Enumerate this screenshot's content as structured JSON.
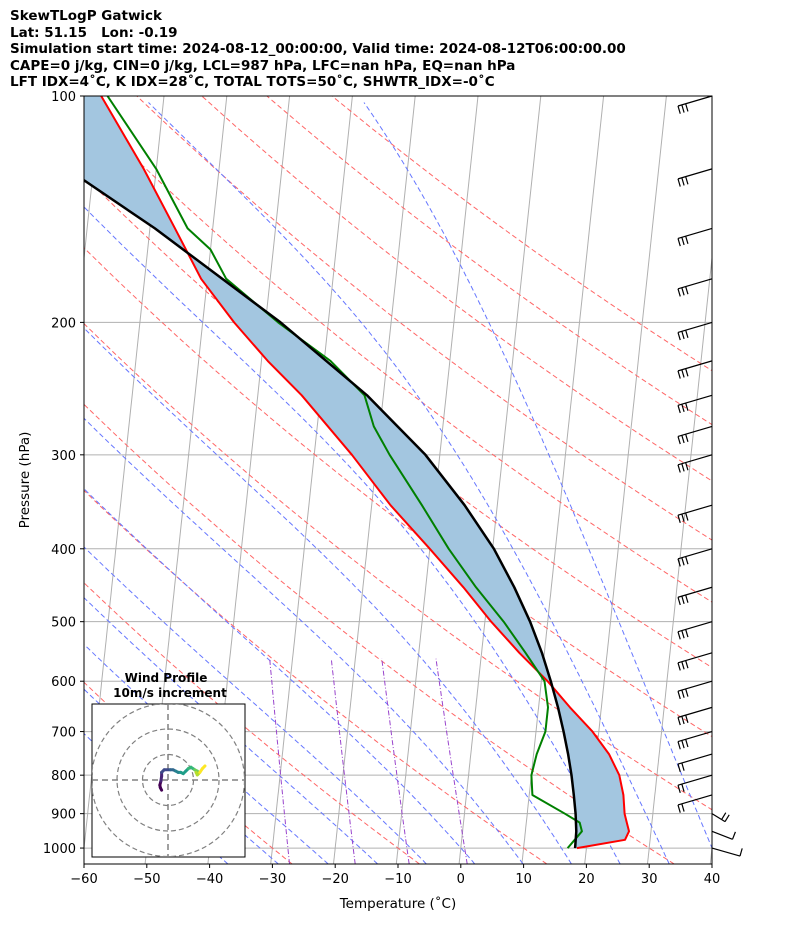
{
  "header": {
    "line1": "SkewTLogP Gatwick",
    "line2": "Lat: 51.15   Lon: -0.19",
    "line3": "Simulation start time: 2024-08-12_00:00:00, Valid time: 2024-08-12T06:00:00.00",
    "line4": "CAPE=0 j/kg, CIN=0 j/kg, LCL=987 hPa, LFC=nan hPa, EQ=nan hPa",
    "line5": "LFT IDX=4˚C, K IDX=28˚C, TOTAL TOTS=50˚C, SHWTR_IDX=-0˚C"
  },
  "colors": {
    "temperature": "#ff0000",
    "dewpoint": "#008000",
    "parcel": "#000000",
    "fill": "#a3c6e0",
    "dry_adiabat": "#ff6666",
    "moist_adiabat": "#6677ff",
    "mixing_ratio": "#9944cc",
    "isotherm": "#b0b0b0"
  },
  "chart_data": [
    {
      "type": "line",
      "subtype": "skew-t log-p",
      "xlabel": "Temperature (˚C)",
      "ylabel": "Pressure (hPa)",
      "xlim": [
        -60,
        40
      ],
      "ylim": [
        1050,
        100
      ],
      "y_scale": "log",
      "x_ticks": [
        -60,
        -50,
        -40,
        -30,
        -20,
        -10,
        0,
        10,
        20,
        30,
        40
      ],
      "y_ticks": [
        1000,
        900,
        800,
        700,
        600,
        500,
        400,
        300,
        200,
        100
      ],
      "grid": true,
      "series": [
        {
          "key": "temperature",
          "pressure": [
            1000,
            975,
            950,
            925,
            900,
            850,
            800,
            750,
            700,
            650,
            600,
            550,
            500,
            450,
            400,
            350,
            300,
            250,
            225,
            200,
            175,
            150,
            125,
            100
          ],
          "values": [
            18.5,
            26,
            26.5,
            26,
            25.5,
            25,
            24,
            22,
            19,
            15,
            11,
            6,
            1,
            -4,
            -10,
            -17,
            -24,
            -33,
            -39,
            -45,
            -51,
            -56,
            -62,
            -70
          ]
        },
        {
          "key": "dewpoint",
          "pressure": [
            1000,
            975,
            950,
            925,
            900,
            850,
            800,
            750,
            700,
            650,
            600,
            550,
            500,
            450,
            400,
            350,
            300,
            275,
            250,
            225,
            200,
            175,
            160,
            150,
            125,
            100
          ],
          "values": [
            17,
            18,
            19,
            18.5,
            16,
            10.5,
            10,
            10.5,
            11.5,
            11.5,
            10.5,
            7,
            3,
            -2,
            -7,
            -12,
            -18,
            -21,
            -23,
            -29,
            -38,
            -47,
            -50,
            -54,
            -60,
            -69
          ]
        },
        {
          "key": "parcel",
          "pressure": [
            1000,
            950,
            900,
            850,
            800,
            750,
            700,
            650,
            600,
            550,
            500,
            450,
            400,
            350,
            300,
            250,
            200,
            150,
            100
          ],
          "values": [
            18.2,
            18.1,
            17.7,
            17.1,
            16.4,
            15.5,
            14.4,
            13.1,
            11.5,
            9.6,
            7.2,
            4.1,
            0.2,
            -5.2,
            -12.3,
            -22.6,
            -37.6,
            -59.2,
            -92.5
          ]
        }
      ],
      "wind_barbs": {
        "pressure": [
          1000,
          950,
          900,
          850,
          800,
          750,
          700,
          650,
          600,
          550,
          500,
          450,
          400,
          350,
          300,
          275,
          250,
          225,
          200,
          175,
          150,
          125,
          100
        ],
        "speed_kt": [
          10,
          12,
          15,
          18,
          20,
          22,
          25,
          28,
          30,
          33,
          35,
          38,
          40,
          42,
          45,
          48,
          50,
          52,
          50,
          48,
          45,
          42,
          40
        ]
      }
    },
    {
      "type": "line",
      "subtype": "hodograph",
      "title": "Wind Profile",
      "subtitle": "10m/s increment",
      "ring_increment": 10,
      "u": [
        -2.5,
        -3,
        -3.2,
        -2.8,
        -2.5,
        -2.5,
        -1.5,
        1,
        2,
        3,
        4,
        5,
        6,
        7,
        8,
        9,
        10.5,
        11.5,
        11,
        11.5,
        12.5,
        13.5,
        14.5
      ],
      "v": [
        -4,
        -3,
        -2,
        -0.5,
        1.5,
        3,
        4,
        4,
        4,
        3.5,
        3,
        3,
        2.5,
        3.5,
        4.5,
        5,
        4,
        3.5,
        3,
        2,
        3,
        4.5,
        5.5
      ]
    }
  ]
}
